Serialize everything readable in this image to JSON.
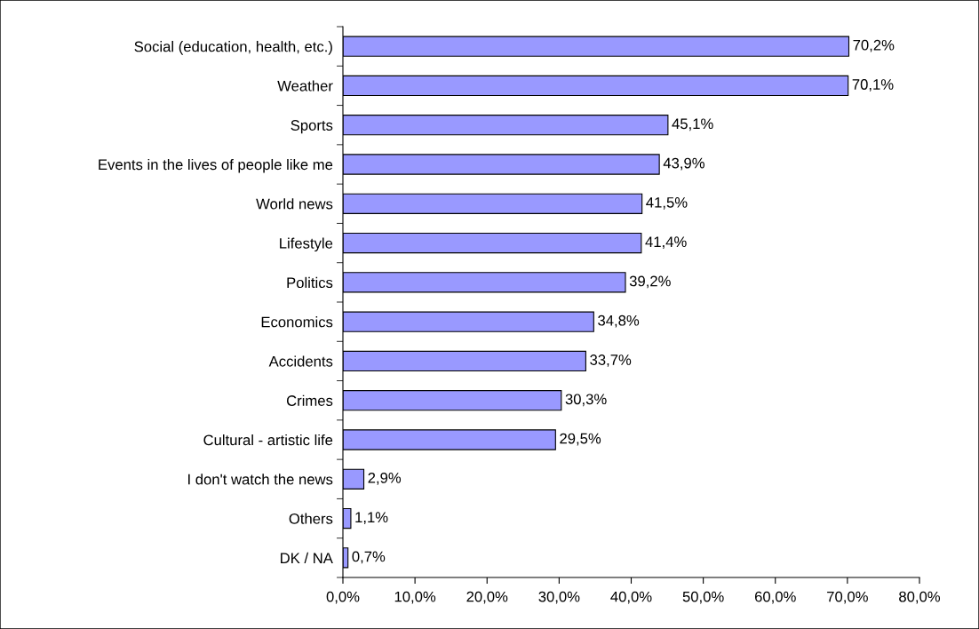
{
  "chart_data": {
    "type": "bar",
    "orientation": "horizontal",
    "categories": [
      "Social (education, health, etc.)",
      "Weather",
      "Sports",
      "Events in the lives of people like me",
      "World news",
      "Lifestyle",
      "Politics",
      "Economics",
      "Accidents",
      "Crimes",
      "Cultural - artistic life",
      "I don't watch the news",
      "Others",
      "DK / NA"
    ],
    "values": [
      70.2,
      70.1,
      45.1,
      43.9,
      41.5,
      41.4,
      39.2,
      34.8,
      33.7,
      30.3,
      29.5,
      2.9,
      1.1,
      0.7
    ],
    "value_labels": [
      "70,2%",
      "70,1%",
      "45,1%",
      "43,9%",
      "41,5%",
      "41,4%",
      "39,2%",
      "34,8%",
      "33,7%",
      "30,3%",
      "29,5%",
      "2,9%",
      "1,1%",
      "0,7%"
    ],
    "color": "#9999ff",
    "xlim": [
      0,
      80
    ],
    "xticks": [
      {
        "value": 0,
        "label": "0,0%"
      },
      {
        "value": 10,
        "label": "10,0%"
      },
      {
        "value": 20,
        "label": "20,0%"
      },
      {
        "value": 30,
        "label": "30,0%"
      },
      {
        "value": 40,
        "label": "40,0%"
      },
      {
        "value": 50,
        "label": "50,0%"
      },
      {
        "value": 60,
        "label": "60,0%"
      },
      {
        "value": 70,
        "label": "70,0%"
      },
      {
        "value": 80,
        "label": "80,0%"
      }
    ],
    "grid": false,
    "legend": false
  }
}
